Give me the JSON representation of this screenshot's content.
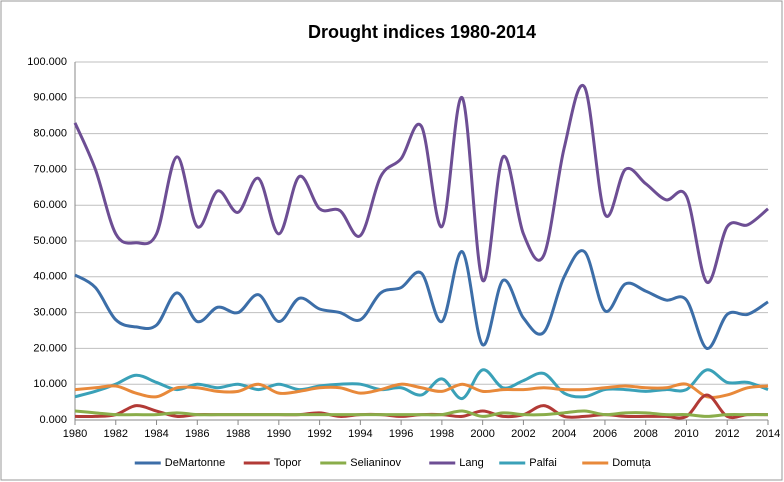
{
  "chart_data": {
    "type": "line",
    "title": "Drought indices  1980-2014",
    "x": [
      1980,
      1981,
      1982,
      1983,
      1984,
      1985,
      1986,
      1987,
      1988,
      1989,
      1990,
      1991,
      1992,
      1993,
      1994,
      1995,
      1996,
      1997,
      1998,
      1999,
      2000,
      2001,
      2002,
      2003,
      2004,
      2005,
      2006,
      2007,
      2008,
      2009,
      2010,
      2011,
      2012,
      2013,
      2014
    ],
    "series": [
      {
        "name": "DeMartonne",
        "color": "#3c6ea8",
        "values": [
          40.5,
          37,
          28,
          26,
          26.5,
          35.5,
          27.5,
          31.5,
          30,
          35,
          27.5,
          34,
          31,
          30,
          28,
          35.5,
          37,
          41,
          27.5,
          47,
          21,
          39,
          28.5,
          24.5,
          40,
          47,
          30.5,
          38,
          36,
          33.5,
          33.5,
          20,
          29.5,
          29.5,
          33
        ]
      },
      {
        "name": "Topor",
        "color": "#b23a36",
        "values": [
          1,
          1,
          1.5,
          4,
          2.5,
          1,
          1.5,
          1.5,
          1.5,
          1.5,
          1.5,
          1.5,
          2,
          1,
          1.5,
          1.5,
          1,
          1.5,
          1.5,
          1,
          2.5,
          1,
          1.5,
          4,
          1,
          1,
          1.5,
          1,
          1,
          1,
          1,
          7,
          1,
          1.5,
          1.5
        ]
      },
      {
        "name": "Selianinov",
        "color": "#8aad4a",
        "values": [
          2.5,
          2,
          1.5,
          1.5,
          1.5,
          2,
          1.5,
          1.5,
          1.5,
          1.5,
          1.5,
          1.5,
          1.5,
          1.5,
          1.5,
          1.5,
          1.5,
          1.5,
          1.5,
          2.5,
          1,
          2,
          1.5,
          1.5,
          2,
          2.5,
          1.5,
          2,
          2,
          1.5,
          1.5,
          1,
          1.5,
          1.5,
          1.5
        ]
      },
      {
        "name": "Lang",
        "color": "#6d4e94",
        "values": [
          83,
          70,
          52,
          49.5,
          52,
          73.5,
          54,
          64,
          58,
          67.5,
          52,
          68,
          59,
          58.5,
          51.5,
          68,
          73,
          82,
          54,
          90,
          39,
          73.5,
          52,
          46,
          76,
          93,
          57.5,
          70,
          66,
          61.5,
          62.5,
          38.5,
          54,
          54.5,
          59
        ]
      },
      {
        "name": "Palfai",
        "color": "#3aa1b8",
        "values": [
          6.5,
          8,
          10,
          12.5,
          10.5,
          8.5,
          10,
          9,
          10,
          8.5,
          10,
          8.5,
          9.5,
          10,
          10,
          8.5,
          9,
          7,
          11.5,
          6,
          14,
          9,
          11,
          13,
          7.5,
          6.5,
          8.5,
          8.5,
          8,
          8.5,
          8.5,
          14,
          10.5,
          10.5,
          8.5
        ]
      },
      {
        "name": "Domuța",
        "color": "#e8893a",
        "values": [
          8.5,
          9,
          9.5,
          7.5,
          6.5,
          9,
          9,
          8,
          8,
          10,
          7.5,
          8,
          9,
          9,
          7.5,
          8.5,
          10,
          9,
          8,
          10,
          8,
          8.5,
          8.5,
          9,
          8.5,
          8.5,
          9,
          9.5,
          9,
          9,
          10,
          6.5,
          7,
          9,
          9.5
        ]
      }
    ],
    "xlim": [
      1980,
      2014
    ],
    "xticks": [
      1980,
      1982,
      1984,
      1986,
      1988,
      1990,
      1992,
      1994,
      1996,
      1998,
      2000,
      2002,
      2004,
      2006,
      2008,
      2010,
      2012,
      2014
    ],
    "ylim": [
      0,
      100
    ],
    "yticks": [
      {
        "value": 0,
        "label": "0.000"
      },
      {
        "value": 10,
        "label": "10.000"
      },
      {
        "value": 20,
        "label": "20.000"
      },
      {
        "value": 30,
        "label": "30.000"
      },
      {
        "value": 40,
        "label": "40.000"
      },
      {
        "value": 50,
        "label": "50.000"
      },
      {
        "value": 60,
        "label": "60.000"
      },
      {
        "value": 70,
        "label": "70.000"
      },
      {
        "value": 80,
        "label": "80.000"
      },
      {
        "value": 90,
        "label": "90.000"
      },
      {
        "value": 100,
        "label": "100.000"
      }
    ],
    "grid": true
  }
}
